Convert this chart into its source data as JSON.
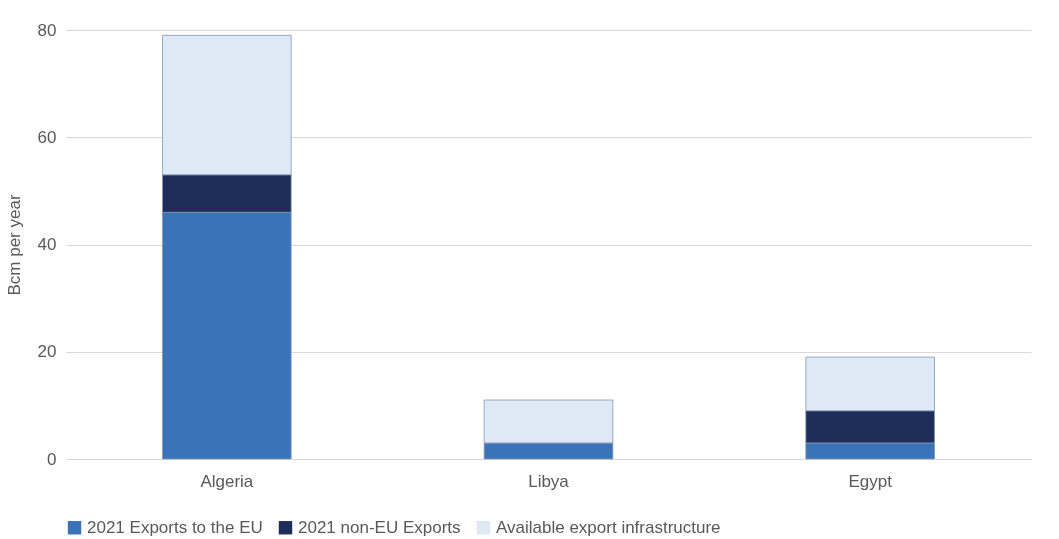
{
  "chart_data": {
    "type": "bar",
    "stacked": true,
    "ylabel": "Bcm per year",
    "categories": [
      "Algeria",
      "Libya",
      "Egypt"
    ],
    "series": [
      {
        "name": "2021 Exports to the EU",
        "color": "#3b73b9",
        "values": [
          46,
          3,
          3
        ]
      },
      {
        "name": "2021 non-EU Exports",
        "color": "#1f2d5a",
        "values": [
          7,
          0,
          6
        ]
      },
      {
        "name": "Available export infrastructure",
        "color": "#dde9f5",
        "values": [
          26,
          8,
          10
        ]
      }
    ],
    "ylim": [
      0,
      80
    ],
    "yticks": [
      0,
      20,
      40,
      60,
      80
    ],
    "grid": "y",
    "legend": "bottom"
  }
}
